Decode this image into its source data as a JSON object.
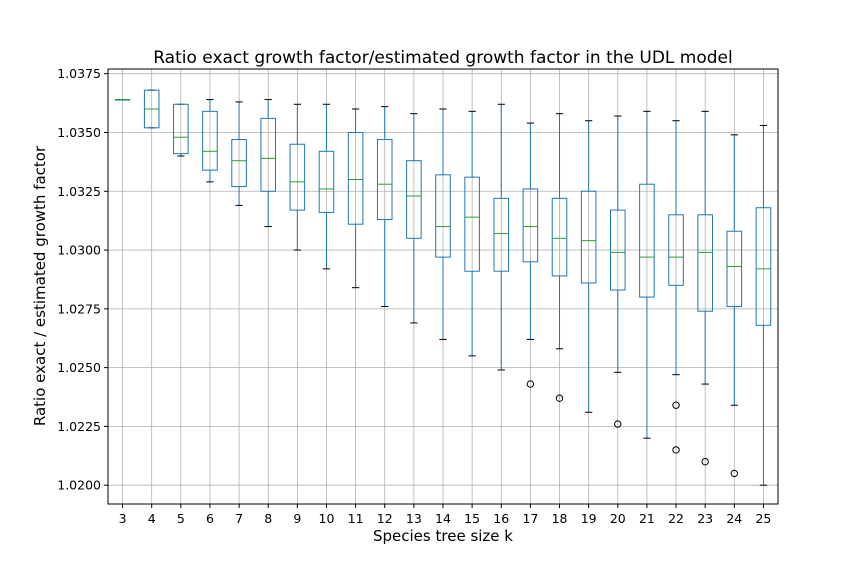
{
  "chart_data": {
    "type": "box",
    "title": "Ratio exact growth factor/estimated growth factor  in the UDL model",
    "xlabel": "Species tree size k",
    "ylabel": "Ratio exact / estimated growth factor",
    "ylim": [
      1.0192,
      1.0377
    ],
    "yticks": [
      "1.0200",
      "1.0225",
      "1.0250",
      "1.0275",
      "1.0300",
      "1.0325",
      "1.0350",
      "1.0375"
    ],
    "grid": true,
    "colors": {
      "box": "#1f77b4",
      "median": "#2ca02c",
      "whisker": "#1f77b4",
      "flier": "#000000",
      "grid": "#b0b0b0"
    },
    "categories": [
      "3",
      "4",
      "5",
      "6",
      "7",
      "8",
      "9",
      "10",
      "11",
      "12",
      "13",
      "14",
      "15",
      "16",
      "17",
      "18",
      "19",
      "20",
      "21",
      "22",
      "23",
      "24",
      "25"
    ],
    "boxes": [
      {
        "k": "3",
        "whislo": 1.0364,
        "q1": 1.0364,
        "med": 1.0364,
        "q3": 1.0364,
        "whishi": 1.0364,
        "fliers": []
      },
      {
        "k": "4",
        "whislo": 1.0352,
        "q1": 1.0352,
        "med": 1.036,
        "q3": 1.0368,
        "whishi": 1.0368,
        "fliers": []
      },
      {
        "k": "5",
        "whislo": 1.034,
        "q1": 1.0341,
        "med": 1.0348,
        "q3": 1.0362,
        "whishi": 1.0362,
        "fliers": []
      },
      {
        "k": "6",
        "whislo": 1.0329,
        "q1": 1.0334,
        "med": 1.0342,
        "q3": 1.0359,
        "whishi": 1.0364,
        "fliers": []
      },
      {
        "k": "7",
        "whislo": 1.0319,
        "q1": 1.0327,
        "med": 1.0338,
        "q3": 1.0347,
        "whishi": 1.0363,
        "fliers": []
      },
      {
        "k": "8",
        "whislo": 1.031,
        "q1": 1.0325,
        "med": 1.0339,
        "q3": 1.0356,
        "whishi": 1.0364,
        "fliers": []
      },
      {
        "k": "9",
        "whislo": 1.03,
        "q1": 1.0317,
        "med": 1.0329,
        "q3": 1.0345,
        "whishi": 1.0362,
        "fliers": []
      },
      {
        "k": "10",
        "whislo": 1.0292,
        "q1": 1.0316,
        "med": 1.0326,
        "q3": 1.0342,
        "whishi": 1.0362,
        "fliers": []
      },
      {
        "k": "11",
        "whislo": 1.0284,
        "q1": 1.0311,
        "med": 1.033,
        "q3": 1.035,
        "whishi": 1.036,
        "fliers": []
      },
      {
        "k": "12",
        "whislo": 1.0276,
        "q1": 1.0313,
        "med": 1.0328,
        "q3": 1.0347,
        "whishi": 1.0361,
        "fliers": []
      },
      {
        "k": "13",
        "whislo": 1.0269,
        "q1": 1.0305,
        "med": 1.0323,
        "q3": 1.0338,
        "whishi": 1.0358,
        "fliers": []
      },
      {
        "k": "14",
        "whislo": 1.0262,
        "q1": 1.0297,
        "med": 1.031,
        "q3": 1.0332,
        "whishi": 1.036,
        "fliers": []
      },
      {
        "k": "15",
        "whislo": 1.0255,
        "q1": 1.0291,
        "med": 1.0314,
        "q3": 1.0331,
        "whishi": 1.0359,
        "fliers": []
      },
      {
        "k": "16",
        "whislo": 1.0249,
        "q1": 1.0291,
        "med": 1.0307,
        "q3": 1.0322,
        "whishi": 1.0362,
        "fliers": []
      },
      {
        "k": "17",
        "whislo": 1.0262,
        "q1": 1.0295,
        "med": 1.031,
        "q3": 1.0326,
        "whishi": 1.0354,
        "fliers": [
          1.0243
        ]
      },
      {
        "k": "18",
        "whislo": 1.0258,
        "q1": 1.0289,
        "med": 1.0305,
        "q3": 1.0322,
        "whishi": 1.0358,
        "fliers": [
          1.0237
        ]
      },
      {
        "k": "19",
        "whislo": 1.0231,
        "q1": 1.0286,
        "med": 1.0304,
        "q3": 1.0325,
        "whishi": 1.0355,
        "fliers": []
      },
      {
        "k": "20",
        "whislo": 1.0248,
        "q1": 1.0283,
        "med": 1.0299,
        "q3": 1.0317,
        "whishi": 1.0357,
        "fliers": [
          1.0226
        ]
      },
      {
        "k": "21",
        "whislo": 1.022,
        "q1": 1.028,
        "med": 1.0297,
        "q3": 1.0328,
        "whishi": 1.0359,
        "fliers": []
      },
      {
        "k": "22",
        "whislo": 1.0247,
        "q1": 1.0285,
        "med": 1.0297,
        "q3": 1.0315,
        "whishi": 1.0355,
        "fliers": [
          1.0234,
          1.0215
        ]
      },
      {
        "k": "23",
        "whislo": 1.0243,
        "q1": 1.0274,
        "med": 1.0299,
        "q3": 1.0315,
        "whishi": 1.0359,
        "fliers": [
          1.021
        ]
      },
      {
        "k": "24",
        "whislo": 1.0234,
        "q1": 1.0276,
        "med": 1.0293,
        "q3": 1.0308,
        "whishi": 1.0349,
        "fliers": [
          1.0205
        ]
      },
      {
        "k": "25",
        "whislo": 1.02,
        "q1": 1.0268,
        "med": 1.0292,
        "q3": 1.0318,
        "whishi": 1.0353,
        "fliers": []
      }
    ]
  }
}
